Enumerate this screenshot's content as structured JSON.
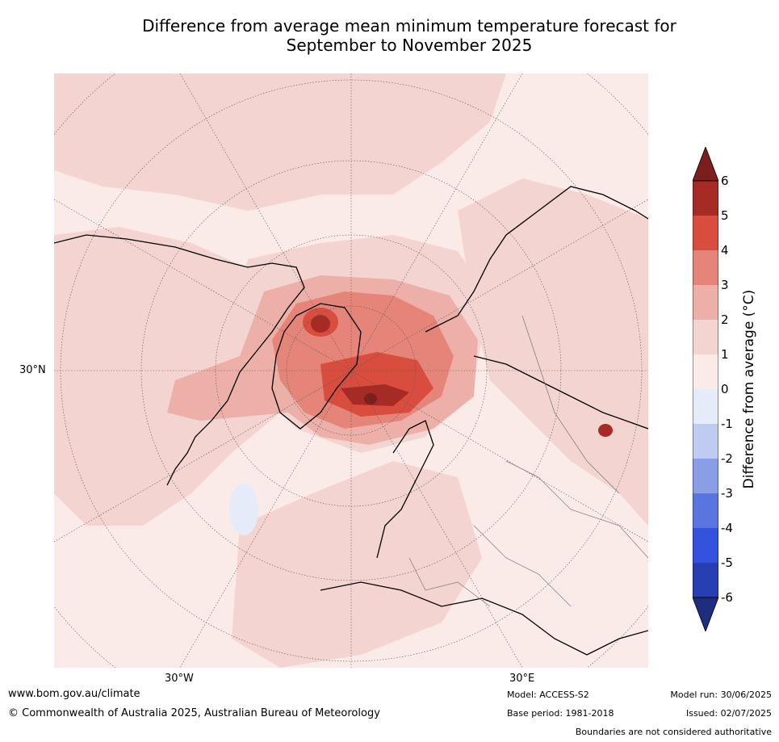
{
  "title": {
    "line1": "Difference from average mean minimum temperature forecast for",
    "line2": "September to November 2025"
  },
  "map": {
    "projection": "north-polar-stereographic",
    "axis_labels": {
      "lat": "30°N",
      "lon_west": "30°W",
      "lon_east": "30°E"
    },
    "regions": [
      {
        "name": "Arctic Ocean north of Greenland / Canadian archipelago",
        "anomaly": "4 to 6"
      },
      {
        "name": "Barents and Kara Sea",
        "anomaly": "3 to 5"
      },
      {
        "name": "Baffin Bay",
        "anomaly": "2 to 4"
      },
      {
        "name": "Siberia",
        "anomaly": "0 to 2"
      },
      {
        "name": "North Atlantic (small cool patch)",
        "anomaly": "-1 to 0"
      }
    ]
  },
  "colorbar": {
    "label": "Difference from average (°C)",
    "ticks": [
      "6",
      "5",
      "4",
      "3",
      "2",
      "1",
      "0",
      "-1",
      "-2",
      "-3",
      "-4",
      "-5",
      "-6"
    ],
    "colors": {
      "above_max": "#7a1e1e",
      "5_to_6": "#a62b25",
      "4_to_5": "#d84d3e",
      "3_to_4": "#e5857a",
      "2_to_3": "#edb0a8",
      "1_to_2": "#f4d4d1",
      "0_to_1": "#fbebe8",
      "-1_to_0": "#e6ebfa",
      "-2_to_-1": "#c0cbf2",
      "-3_to_-2": "#8a9ee8",
      "-4_to_-3": "#5a74e0",
      "-5_to_-4": "#3352dd",
      "-6_to_-5": "#283eb3",
      "below_min": "#1e2d80"
    }
  },
  "footer": {
    "website": "www.bom.gov.au/climate",
    "copyright": "© Commonwealth of Australia 2025, Australian Bureau of Meteorology",
    "model": "Model: ACCESS-S2",
    "base_period": "Base period: 1981-2018",
    "model_run": "Model run: 30/06/2025",
    "issued": "Issued: 02/07/2025",
    "disclaimer": "Boundaries are not considered authoritative"
  }
}
